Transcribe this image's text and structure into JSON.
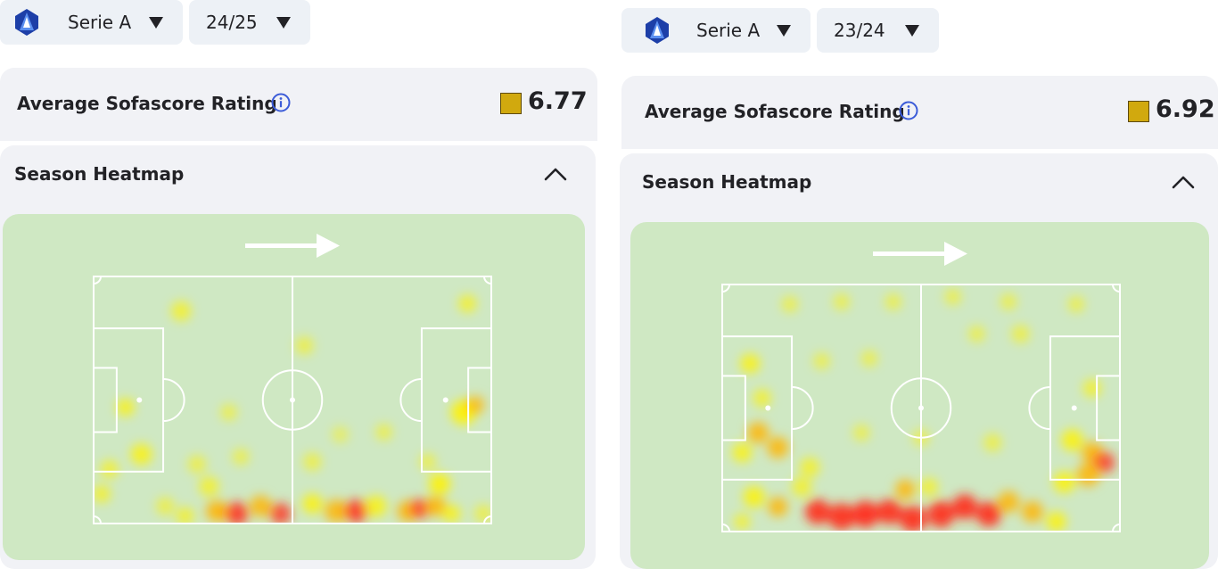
{
  "left": {
    "competition": "Serie A",
    "season": "24/25",
    "rating_label": "Average Sofascore Rating",
    "rating_value": "6.77",
    "heatmap_title": "Season Heatmap"
  },
  "right": {
    "competition": "Serie A",
    "season": "23/24",
    "rating_label": "Average Sofascore Rating",
    "rating_value": "6.92",
    "heatmap_title": "Season Heatmap"
  },
  "colors": {
    "rating_swatch": "#d1a90e",
    "pitch_background": "#cfe8c3",
    "card_background": "#f1f2f6",
    "dropdown_background": "#edf1f6",
    "info_icon": "#3c5cd8"
  },
  "icons": {
    "league_logo": "serie-a-logo-icon",
    "dropdown_caret": "caret-down-icon",
    "info": "info-icon",
    "collapse": "chevron-up-icon",
    "attack_direction": "arrow-right-icon"
  }
}
